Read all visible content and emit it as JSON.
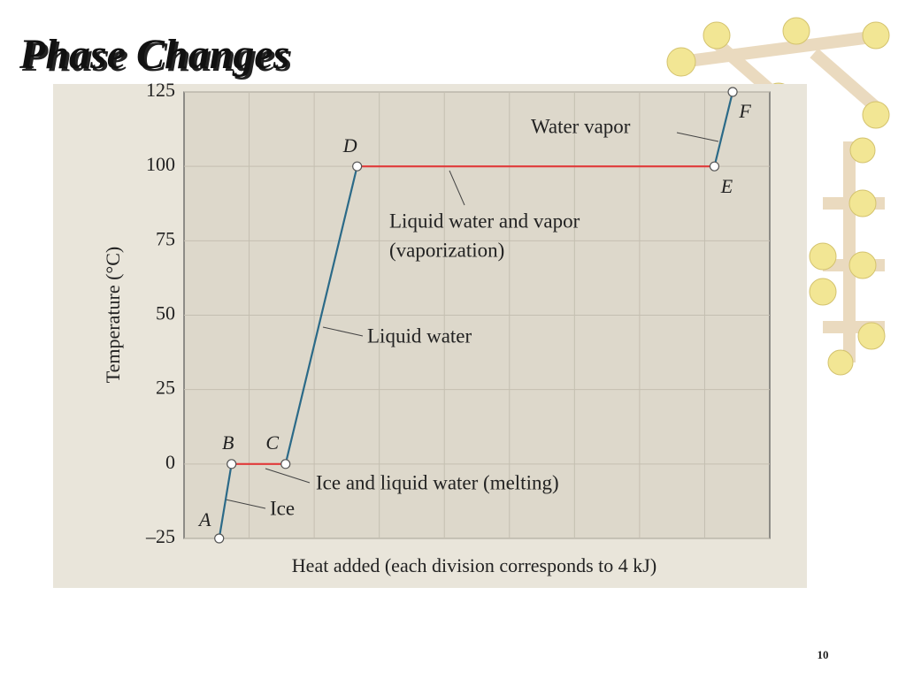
{
  "page_number": "10",
  "chart_data": {
    "type": "line",
    "title": "Phase Changes",
    "y_label": "Temperature (°C)",
    "x_label": "Heat added (each division corresponds to 4 kJ)",
    "xlim": [
      0,
      9
    ],
    "ylim": [
      -25,
      125
    ],
    "yticks": [
      {
        "value": -25,
        "label": "–25"
      },
      0,
      25,
      50,
      75,
      100,
      125
    ],
    "grid": true,
    "x": [
      0.54,
      0.73,
      1.56,
      2.66,
      8.15,
      8.43
    ],
    "series": [
      {
        "values": [
          -25,
          0,
          0,
          100,
          100,
          125
        ],
        "color": "#2b6a88",
        "point_labels": [
          "A",
          "B",
          "C",
          "D",
          "E",
          "F"
        ],
        "segment_colors": [
          "#2b6a88",
          "#e03a3a",
          "#2b6a88",
          "#e03a3a",
          "#2b6a88"
        ]
      }
    ],
    "annotations": [
      {
        "lines": [
          "Water vapor"
        ]
      },
      {
        "lines": [
          "Liquid water and vapor",
          "(vaporization)"
        ]
      },
      {
        "lines": [
          "Liquid water"
        ]
      },
      {
        "lines": [
          "Ice and liquid water (melting)"
        ]
      },
      {
        "lines": [
          "Ice"
        ]
      }
    ]
  }
}
